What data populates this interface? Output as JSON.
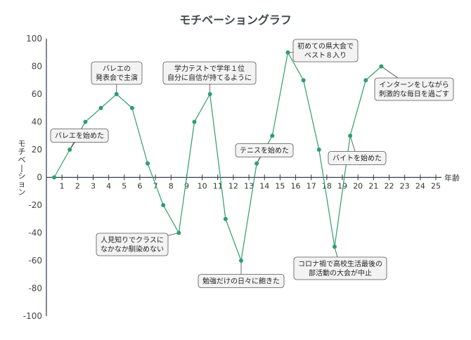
{
  "chart_data": {
    "type": "line",
    "title": "モチベーショングラフ",
    "xlabel": "年齢",
    "ylabel": "モチベーション",
    "ylim": [
      -100,
      100
    ],
    "xlim": [
      0,
      25
    ],
    "yticks": [
      100,
      80,
      60,
      40,
      20,
      0,
      -20,
      -40,
      -60,
      -80,
      -100
    ],
    "xticks": [
      1,
      2,
      3,
      4,
      5,
      6,
      7,
      8,
      9,
      10,
      11,
      12,
      13,
      14,
      15,
      16,
      17,
      18,
      19,
      20,
      21,
      22,
      23,
      24,
      25
    ],
    "grid": false,
    "line_color": "#2e9e6a",
    "series": [
      {
        "x": [
          0.5,
          1.5,
          2.5,
          3.5,
          4.5,
          5.5,
          6.5,
          7.5,
          8.5,
          9.5,
          10.5,
          11.5,
          12.5,
          13.5,
          14.5,
          15.5,
          16.5,
          17.5,
          18.5,
          19.5,
          20.5,
          21.5
        ],
        "values": [
          0,
          20,
          40,
          50,
          60,
          50,
          10,
          -20,
          -40,
          40,
          60,
          -30,
          -60,
          10,
          30,
          90,
          70,
          20,
          -50,
          30,
          70,
          80
        ]
      }
    ],
    "annotations": [
      {
        "lines": [
          "バレエを始めた"
        ],
        "x": 1.5,
        "y": 20
      },
      {
        "lines": [
          "バレエの",
          "発表会で主演"
        ],
        "x": 4.5,
        "y": 60
      },
      {
        "lines": [
          "人見知りでクラスに",
          "なかなか馴染めない"
        ],
        "x": 8.5,
        "y": -40
      },
      {
        "lines": [
          "学力テストで学年１位",
          "自分に自信が持てるように"
        ],
        "x": 10.5,
        "y": 60
      },
      {
        "lines": [
          "勉強だけの日々に飽きた"
        ],
        "x": 12.5,
        "y": -60
      },
      {
        "lines": [
          "テニスを始めた"
        ],
        "x": 13.5,
        "y": 10
      },
      {
        "lines": [
          "初めての県大会で",
          "ベスト８入り"
        ],
        "x": 15.5,
        "y": 90
      },
      {
        "lines": [
          "コロナ禍で高校生活最後の",
          "部活動の大会が中止"
        ],
        "x": 18.5,
        "y": -50
      },
      {
        "lines": [
          "バイトを始めた"
        ],
        "x": 19.5,
        "y": 30
      },
      {
        "lines": [
          "インターンをしながら",
          "刺激的な毎日を過ごす"
        ],
        "x": 21.5,
        "y": 80
      }
    ]
  }
}
